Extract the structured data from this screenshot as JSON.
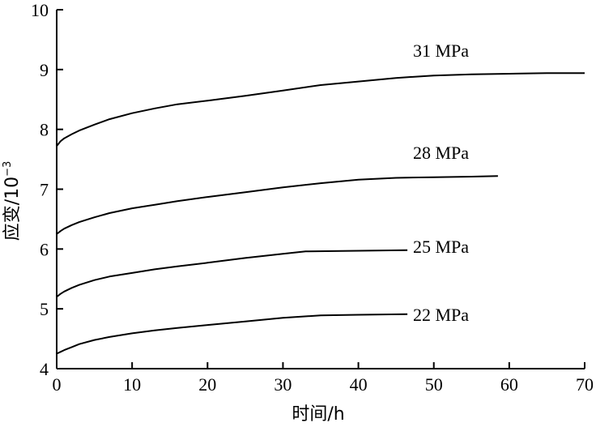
{
  "chart_data": {
    "type": "line",
    "xlabel": "时间/h",
    "ylabel": "应变/10",
    "ylabel_exponent": "−3",
    "xlim": [
      0,
      70
    ],
    "ylim": [
      4,
      10
    ],
    "xticks": [
      0,
      10,
      20,
      30,
      40,
      50,
      60,
      70
    ],
    "yticks": [
      4,
      5,
      6,
      7,
      8,
      9,
      10
    ],
    "grid": false,
    "legend": "none",
    "series": [
      {
        "name": "31 MPa",
        "x": [
          0,
          0.5,
          1,
          2,
          3,
          5,
          7,
          10,
          13,
          16,
          20,
          25,
          30,
          35,
          40,
          45,
          50,
          55,
          60,
          65,
          70
        ],
        "y": [
          7.72,
          7.8,
          7.85,
          7.92,
          7.98,
          8.08,
          8.17,
          8.27,
          8.35,
          8.42,
          8.48,
          8.56,
          8.65,
          8.74,
          8.8,
          8.86,
          8.9,
          8.92,
          8.93,
          8.94,
          8.94
        ]
      },
      {
        "name": "28 MPa",
        "x": [
          0,
          0.5,
          1,
          2,
          3,
          5,
          7,
          10,
          13,
          16,
          20,
          25,
          30,
          35,
          40,
          45,
          50,
          55,
          58.5
        ],
        "y": [
          6.25,
          6.3,
          6.34,
          6.4,
          6.45,
          6.53,
          6.6,
          6.68,
          6.74,
          6.8,
          6.87,
          6.95,
          7.03,
          7.1,
          7.16,
          7.19,
          7.2,
          7.21,
          7.22
        ]
      },
      {
        "name": "25 MPa",
        "x": [
          0,
          0.5,
          1,
          2,
          3,
          5,
          7,
          10,
          13,
          16,
          20,
          25,
          30,
          33,
          40,
          46.5
        ],
        "y": [
          5.2,
          5.25,
          5.29,
          5.35,
          5.4,
          5.48,
          5.54,
          5.6,
          5.66,
          5.71,
          5.77,
          5.85,
          5.92,
          5.96,
          5.97,
          5.98
        ]
      },
      {
        "name": "22 MPa",
        "x": [
          0,
          0.5,
          1,
          2,
          3,
          5,
          7,
          10,
          13,
          16,
          20,
          25,
          30,
          35,
          40,
          46.5
        ],
        "y": [
          4.25,
          4.28,
          4.31,
          4.36,
          4.41,
          4.48,
          4.53,
          4.59,
          4.64,
          4.68,
          4.73,
          4.79,
          4.85,
          4.89,
          4.9,
          4.91
        ]
      }
    ]
  }
}
